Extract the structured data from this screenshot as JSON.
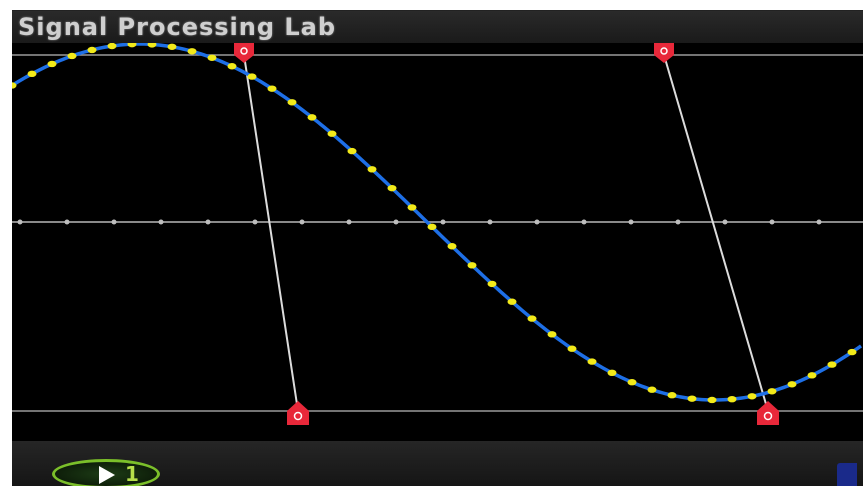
{
  "app": {
    "title": "Signal Processing Lab"
  },
  "plot": {
    "colors": {
      "background": "#000000",
      "waveform": "#1e6fe6",
      "samples": "#f2ea1a",
      "axis": "#8a8a8a",
      "rail": "#9a9a9a",
      "cursor_line": "#dcdcdc",
      "cursor_handle": "#e8283a"
    },
    "waveform": {
      "shape": "sine",
      "samples_shown": true
    },
    "cursors": [
      {
        "name": "cursor-a"
      },
      {
        "name": "cursor-b"
      }
    ]
  },
  "bottom_bar": {
    "play_button_icon": "play-once-icon",
    "corner_button_icon": "menu-icon"
  }
}
